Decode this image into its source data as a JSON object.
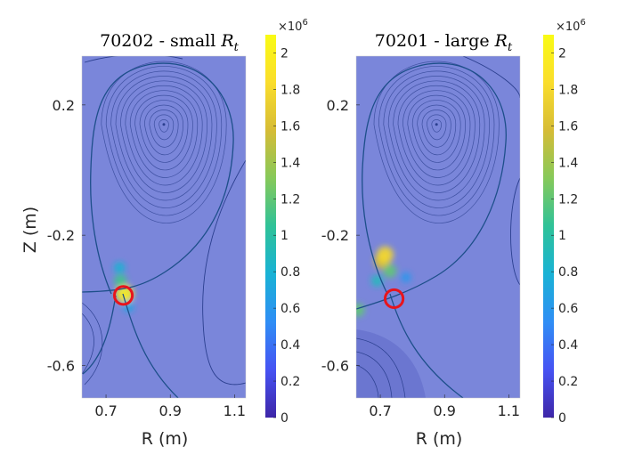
{
  "figure": {
    "ylabel": "Z (m)",
    "xlabel": "R (m)",
    "colormap": [
      "#3e26a8",
      "#4653f3",
      "#2f8ef5",
      "#19b2d5",
      "#2fc298",
      "#86c95a",
      "#d6bc36",
      "#fadd2c",
      "#f9fb15"
    ],
    "background_color": "#7a86da",
    "highlight_circle_color": "#e8141c"
  },
  "chart_data": [
    {
      "type": "heatmap",
      "title_prefix": "70202 - small ",
      "title_symbol": "R",
      "title_subscript": "t",
      "xlabel": "R (m)",
      "ylabel": "Z (m)",
      "xlim": [
        0.625,
        1.135
      ],
      "ylim": [
        -0.7,
        0.35
      ],
      "xticks": [
        0.7,
        0.9,
        1.1
      ],
      "xtick_labels": [
        "0.7",
        "0.9",
        "1.1"
      ],
      "yticks": [
        0.2,
        -0.2,
        -0.6
      ],
      "ytick_labels": [
        "0.2",
        "-0.2",
        "-0.6"
      ],
      "colorbar": {
        "range": [
          0,
          2.1
        ],
        "ticks": [
          0,
          0.2,
          0.4,
          0.6,
          0.8,
          1,
          1.2,
          1.4,
          1.6,
          1.8,
          2
        ],
        "tick_labels": [
          "0",
          "0.2",
          "0.4",
          "0.6",
          "0.8",
          "1",
          "1.2",
          "1.4",
          "1.6",
          "1.8",
          "2"
        ],
        "exponent_label": "×10",
        "exponent": "6"
      },
      "magnetic_axis": [
        0.88,
        0.14
      ],
      "x_point": [
        0.75,
        -0.37
      ],
      "highlight": {
        "center": [
          0.754,
          -0.385
        ],
        "radius": 0.028
      },
      "hot_spots": [
        {
          "r": 0.758,
          "z": -0.38,
          "value": 2.0
        },
        {
          "r": 0.745,
          "z": -0.34,
          "value": 1.1
        },
        {
          "r": 0.742,
          "z": -0.3,
          "value": 0.8
        },
        {
          "r": 0.77,
          "z": -0.42,
          "value": 0.7
        }
      ]
    },
    {
      "type": "heatmap",
      "title_prefix": "70201 - large ",
      "title_symbol": "R",
      "title_subscript": "t",
      "xlabel": "R (m)",
      "ylabel": "Z (m)",
      "xlim": [
        0.625,
        1.135
      ],
      "ylim": [
        -0.7,
        0.35
      ],
      "xticks": [
        0.7,
        0.9,
        1.1
      ],
      "xtick_labels": [
        "0.7",
        "0.9",
        "1.1"
      ],
      "yticks": [
        0.2,
        -0.2,
        -0.6
      ],
      "ytick_labels": [
        "0.2",
        "-0.2",
        "-0.6"
      ],
      "colorbar": {
        "range": [
          0,
          2.1
        ],
        "ticks": [
          0,
          0.2,
          0.4,
          0.6,
          0.8,
          1,
          1.2,
          1.4,
          1.6,
          1.8,
          2
        ],
        "tick_labels": [
          "0",
          "0.2",
          "0.4",
          "0.6",
          "0.8",
          "1",
          "1.2",
          "1.4",
          "1.6",
          "1.8",
          "2"
        ],
        "exponent_label": "×10",
        "exponent": "6"
      },
      "magnetic_axis": [
        0.875,
        0.14
      ],
      "x_point": [
        0.75,
        -0.39
      ],
      "highlight": {
        "center": [
          0.743,
          -0.395
        ],
        "radius": 0.028
      },
      "hot_spots": [
        {
          "r": 0.705,
          "z": -0.28,
          "value": 1.6
        },
        {
          "r": 0.715,
          "z": -0.26,
          "value": 1.8
        },
        {
          "r": 0.73,
          "z": -0.31,
          "value": 1.2
        },
        {
          "r": 0.69,
          "z": -0.34,
          "value": 0.9
        },
        {
          "r": 0.63,
          "z": -0.43,
          "value": 1.2
        },
        {
          "r": 0.78,
          "z": -0.33,
          "value": 0.6
        }
      ]
    }
  ]
}
